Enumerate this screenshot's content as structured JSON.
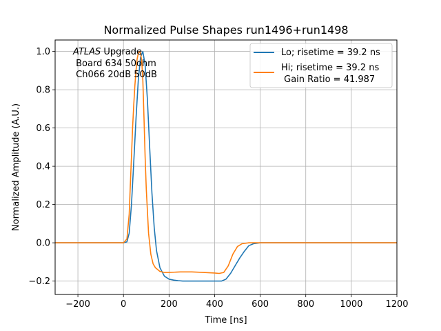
{
  "chart_data": {
    "type": "line",
    "title": "Normalized Pulse Shapes run1496+run1498",
    "xlabel": "Time [ns]",
    "ylabel": "Normalized Amplitude (A.U.)",
    "xlim": [
      -300,
      1200
    ],
    "ylim": [
      -0.27,
      1.06
    ],
    "xticks": [
      -200,
      0,
      200,
      400,
      600,
      800,
      1000,
      1200
    ],
    "yticks": [
      -0.2,
      0.0,
      0.2,
      0.4,
      0.6,
      0.8,
      1.0
    ],
    "xtick_labels": [
      "−200",
      "0",
      "200",
      "400",
      "600",
      "800",
      "1000",
      "1200"
    ],
    "ytick_labels": [
      "−0.2",
      "0.0",
      "0.2",
      "0.4",
      "0.6",
      "0.8",
      "1.0"
    ],
    "grid": true,
    "legend_position": "top-right",
    "annotation": {
      "atlas": "ATLAS",
      "line1_rest": " Upgrade",
      "line2": " Board 634 50ohm",
      "line3": " Ch066 20dB 50dB"
    },
    "series": [
      {
        "name": "Lo; risetime = 39.2 ns",
        "color": "#1f77b4",
        "x": [
          -300,
          0,
          15,
          25,
          35,
          45,
          55,
          65,
          75,
          85,
          95,
          105,
          115,
          125,
          135,
          145,
          160,
          180,
          200,
          220,
          240,
          260,
          300,
          350,
          400,
          430,
          450,
          470,
          490,
          510,
          530,
          550,
          570,
          600,
          700,
          800,
          900,
          1000,
          1100,
          1200
        ],
        "y": [
          0.0,
          0.0,
          0.005,
          0.05,
          0.2,
          0.42,
          0.65,
          0.85,
          0.97,
          1.0,
          0.93,
          0.75,
          0.5,
          0.26,
          0.08,
          -0.04,
          -0.13,
          -0.175,
          -0.19,
          -0.195,
          -0.198,
          -0.2,
          -0.2,
          -0.2,
          -0.2,
          -0.2,
          -0.19,
          -0.16,
          -0.12,
          -0.08,
          -0.045,
          -0.015,
          -0.005,
          0.0,
          0.0,
          0.0,
          0.0,
          0.0,
          0.0,
          0.0
        ]
      },
      {
        "name": "Hi; risetime = 39.2 ns",
        "name_line2": " Gain Ratio = 41.987",
        "color": "#ff7f0e",
        "x": [
          -300,
          0,
          15,
          25,
          30,
          35,
          40,
          45,
          50,
          55,
          60,
          65,
          70,
          75,
          80,
          85,
          90,
          95,
          100,
          110,
          120,
          130,
          140,
          150,
          160,
          180,
          200,
          250,
          300,
          350,
          400,
          420,
          440,
          460,
          480,
          500,
          520,
          550,
          600,
          700,
          800,
          900,
          1000,
          1100,
          1200
        ],
        "y": [
          0.0,
          0.0,
          0.02,
          0.15,
          0.3,
          0.45,
          0.6,
          0.72,
          0.82,
          0.9,
          0.96,
          0.99,
          1.0,
          0.99,
          0.95,
          0.85,
          0.65,
          0.45,
          0.28,
          0.05,
          -0.06,
          -0.11,
          -0.13,
          -0.14,
          -0.15,
          -0.155,
          -0.155,
          -0.152,
          -0.152,
          -0.155,
          -0.158,
          -0.16,
          -0.155,
          -0.12,
          -0.06,
          -0.02,
          -0.005,
          0.0,
          0.0,
          0.0,
          0.0,
          0.0,
          0.0,
          0.0,
          0.0
        ]
      }
    ]
  }
}
